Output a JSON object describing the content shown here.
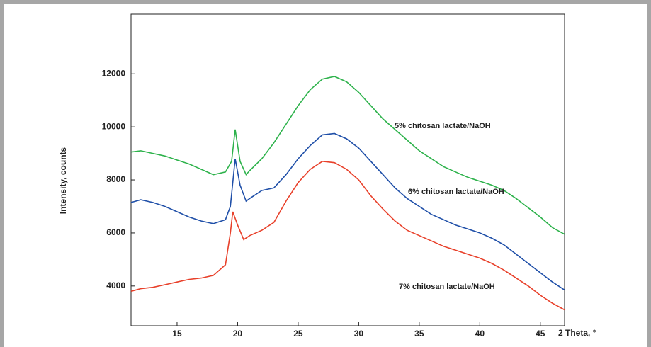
{
  "chart_data": {
    "type": "line",
    "x_label": "2 Theta, °",
    "y_label": "Intensity, counts",
    "xlim": [
      11.2,
      47
    ],
    "ylim": [
      2500,
      14250
    ],
    "xticks": [
      15,
      20,
      25,
      30,
      35,
      40,
      45
    ],
    "yticks": [
      4000,
      6000,
      8000,
      10000,
      12000
    ],
    "series": [
      {
        "name": "5% chitosan lactate/NaOH",
        "color": "#2db24b",
        "x": [
          11.2,
          12,
          13,
          14,
          15,
          16,
          17,
          18,
          19,
          19.5,
          19.8,
          20.2,
          20.7,
          21,
          22,
          23,
          24,
          25,
          26,
          27,
          28,
          29,
          30,
          31,
          32,
          33,
          34,
          35,
          36,
          37,
          38,
          39,
          40,
          41,
          42,
          43,
          44,
          45,
          46,
          47
        ],
        "values": [
          9050,
          9100,
          9000,
          8900,
          8750,
          8600,
          8400,
          8200,
          8300,
          8700,
          9900,
          8700,
          8200,
          8350,
          8800,
          9400,
          10100,
          10800,
          11400,
          11800,
          11900,
          11700,
          11300,
          10800,
          10300,
          9900,
          9500,
          9100,
          8800,
          8500,
          8300,
          8100,
          7950,
          7800,
          7600,
          7300,
          6950,
          6600,
          6200,
          5950
        ]
      },
      {
        "name": "6% chitosan lactate/NaOH",
        "color": "#1f4fa8",
        "x": [
          11.2,
          12,
          13,
          14,
          15,
          16,
          17,
          18,
          19,
          19.4,
          19.8,
          20.2,
          20.7,
          21,
          22,
          23,
          24,
          25,
          26,
          27,
          28,
          29,
          30,
          31,
          32,
          33,
          34,
          35,
          36,
          37,
          38,
          39,
          40,
          41,
          42,
          43,
          44,
          45,
          46,
          47
        ],
        "values": [
          7150,
          7250,
          7150,
          7000,
          6800,
          6600,
          6450,
          6350,
          6500,
          7000,
          8800,
          7800,
          7200,
          7300,
          7600,
          7700,
          8200,
          8800,
          9300,
          9700,
          9750,
          9550,
          9200,
          8700,
          8200,
          7700,
          7300,
          7000,
          6700,
          6500,
          6300,
          6150,
          6000,
          5800,
          5550,
          5200,
          4850,
          4500,
          4150,
          3850
        ]
      },
      {
        "name": "7% chitosan lactate/NaOH",
        "color": "#e8402a",
        "x": [
          11.2,
          12,
          13,
          14,
          15,
          16,
          17,
          18,
          19,
          19.4,
          19.6,
          20,
          20.5,
          21,
          22,
          23,
          24,
          25,
          26,
          27,
          28,
          29,
          30,
          31,
          32,
          33,
          34,
          35,
          36,
          37,
          38,
          39,
          40,
          41,
          42,
          43,
          44,
          45,
          46,
          47
        ],
        "values": [
          3800,
          3900,
          3950,
          4050,
          4150,
          4250,
          4300,
          4400,
          4800,
          6000,
          6800,
          6300,
          5750,
          5900,
          6100,
          6400,
          7200,
          7900,
          8400,
          8700,
          8650,
          8400,
          8000,
          7400,
          6900,
          6450,
          6100,
          5900,
          5700,
          5500,
          5350,
          5200,
          5050,
          4850,
          4600,
          4300,
          4000,
          3650,
          3350,
          3100
        ]
      }
    ]
  }
}
